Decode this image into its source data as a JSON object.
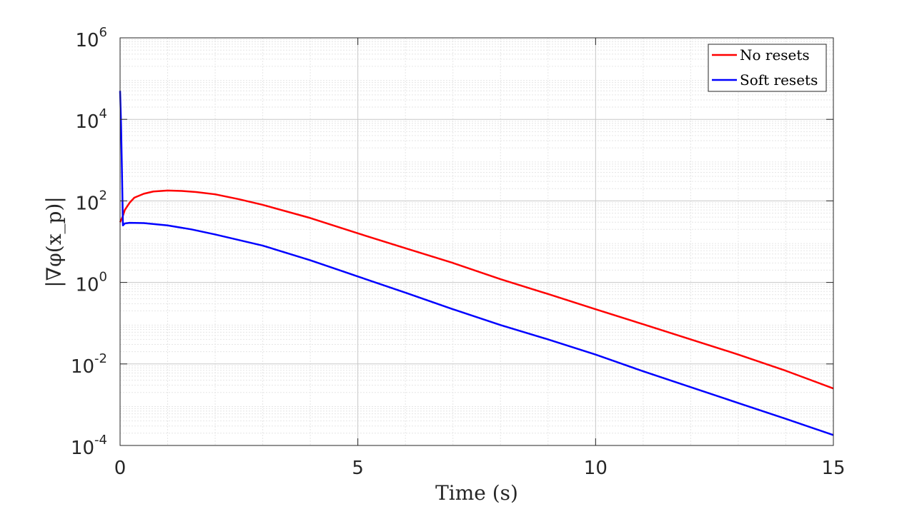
{
  "chart_data": {
    "type": "line",
    "title": "",
    "xlabel": "Time (s)",
    "ylabel": "|∇φ(x_p)|",
    "xlim": [
      0,
      15
    ],
    "ylim": [
      0.0001,
      1000000
    ],
    "y_scale": "log",
    "grid": true,
    "minor_grid": true,
    "legend_position": "top-right",
    "x_ticks": [
      {
        "value": 0,
        "label": "0"
      },
      {
        "value": 5,
        "label": "5"
      },
      {
        "value": 10,
        "label": "10"
      },
      {
        "value": 15,
        "label": "15"
      }
    ],
    "y_ticks": [
      {
        "value": 0.0001,
        "base": "10",
        "exp": "-4"
      },
      {
        "value": 0.01,
        "base": "10",
        "exp": "-2"
      },
      {
        "value": 1,
        "base": "10",
        "exp": "0"
      },
      {
        "value": 100,
        "base": "10",
        "exp": "2"
      },
      {
        "value": 10000,
        "base": "10",
        "exp": "4"
      },
      {
        "value": 1000000,
        "base": "10",
        "exp": "6"
      }
    ],
    "series": [
      {
        "name": "No resets",
        "color": "#ff0000",
        "x": [
          0,
          0.05,
          0.1,
          0.2,
          0.3,
          0.5,
          0.7,
          1.0,
          1.3,
          1.6,
          2.0,
          2.5,
          3.0,
          4.0,
          5.0,
          6.0,
          7.0,
          8.0,
          9.0,
          10.0,
          11.0,
          12.0,
          13.0,
          14.0,
          15.0
        ],
        "y": [
          30,
          40,
          60,
          90,
          120,
          150,
          170,
          180,
          175,
          165,
          145,
          110,
          80,
          38,
          16,
          6.9,
          3,
          1.2,
          0.52,
          0.22,
          0.094,
          0.04,
          0.017,
          0.0068,
          0.0025
        ]
      },
      {
        "name": "Soft resets",
        "color": "#0000ff",
        "x": [
          0,
          0.02,
          0.04,
          0.06,
          0.1,
          0.2,
          0.5,
          1.0,
          1.5,
          2.0,
          3.0,
          4.0,
          5.0,
          6.0,
          7.0,
          8.0,
          9.0,
          10.0,
          11.0,
          12.0,
          13.0,
          14.0,
          15.0
        ],
        "y": [
          50000,
          8000,
          500,
          25,
          28,
          29,
          28.5,
          25,
          20,
          15,
          8,
          3.5,
          1.4,
          0.56,
          0.22,
          0.09,
          0.04,
          0.017,
          0.0066,
          0.0027,
          0.0011,
          0.00045,
          0.00018
        ]
      }
    ]
  }
}
